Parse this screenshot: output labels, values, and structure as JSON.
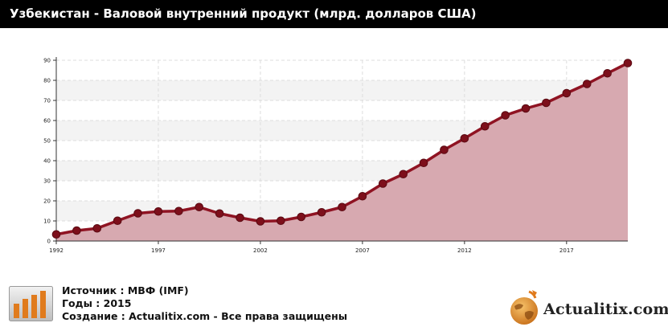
{
  "page": {
    "title": "Узбекистан - Валовой внутренний продукт (млрд. долларов США)"
  },
  "chart_data": {
    "type": "area",
    "title": "Узбекистан - Валовой внутренний продукт (млрд. долларов США)",
    "x": [
      1992,
      1993,
      1994,
      1995,
      1996,
      1997,
      1998,
      1999,
      2000,
      2001,
      2002,
      2003,
      2004,
      2005,
      2006,
      2007,
      2008,
      2009,
      2010,
      2011,
      2012,
      2013,
      2014,
      2015,
      2016,
      2017,
      2018,
      2019,
      2020
    ],
    "values": [
      3.3,
      5.2,
      6.3,
      10.1,
      13.8,
      14.7,
      14.9,
      16.9,
      13.7,
      11.6,
      9.8,
      10.1,
      12.0,
      14.3,
      16.9,
      22.3,
      28.6,
      33.3,
      38.9,
      45.4,
      51.1,
      57.1,
      62.6,
      66.0,
      68.8,
      73.6,
      78.2,
      83.5,
      88.6
    ],
    "xticks": [
      "1992",
      "1997",
      "2002",
      "2007",
      "2012",
      "2017"
    ],
    "yticks": [
      "0",
      "10",
      "20",
      "30",
      "40",
      "50",
      "60",
      "70",
      "80",
      "90"
    ],
    "ylim": [
      0,
      90
    ],
    "xlim": [
      1992,
      2020
    ],
    "grid": true,
    "colors": {
      "line": "#8f1322",
      "marker": "#7d0f1b",
      "fill": "#d7a9b0",
      "band": "#f3f3f3",
      "grid": "#dddddd"
    }
  },
  "footer": {
    "source": "Источник : МВФ (IMF)",
    "years": "Годы : 2015",
    "created": "Создание : Actualitix.com -  Все права защищены",
    "icon": "bar-chart-icon"
  },
  "brand": {
    "name": "Actualitix.com",
    "logo_icon": "globe-icon"
  }
}
